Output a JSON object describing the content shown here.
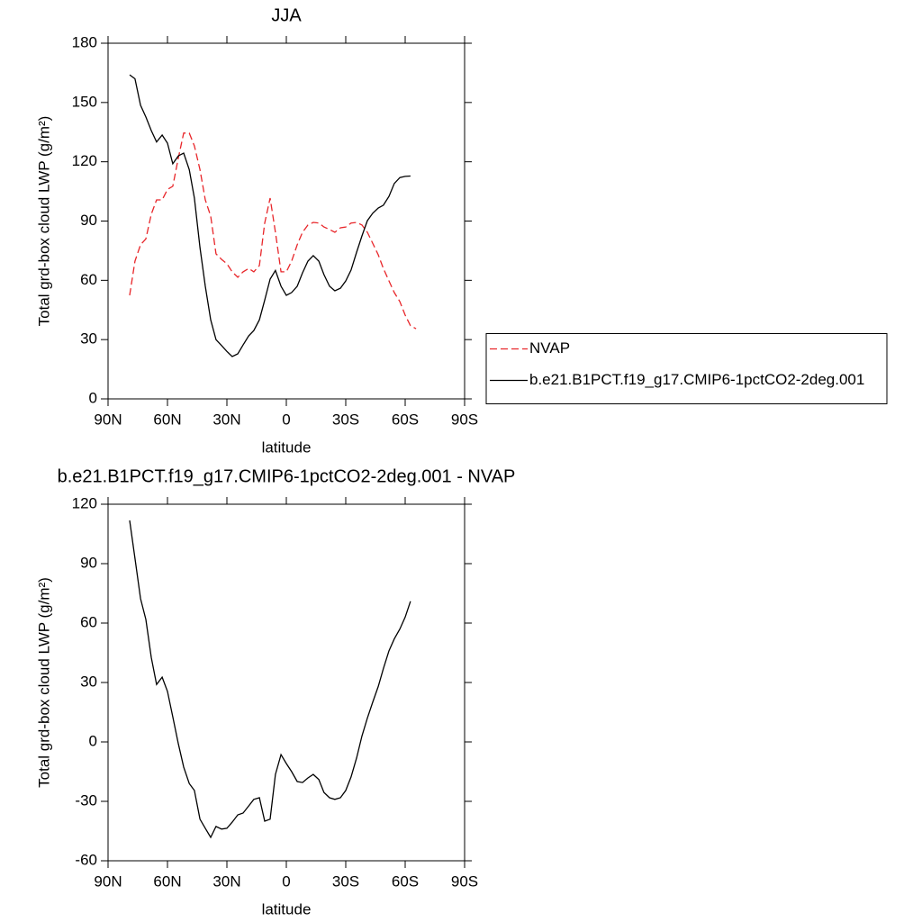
{
  "chart_data": [
    {
      "type": "line",
      "title": "JJA",
      "xlabel": "latitude",
      "ylabel": "Total grd-box cloud LWP (g/m²)",
      "x": [
        79.1,
        76.4,
        73.6,
        70.9,
        68.2,
        65.5,
        62.7,
        60,
        57.3,
        54.5,
        51.8,
        49,
        46.4,
        43.6,
        40.9,
        38.2,
        35.5,
        32.7,
        30,
        27.3,
        24.5,
        21.8,
        19,
        16.4,
        13.6,
        10.9,
        8.2,
        5.5,
        2.7,
        0,
        -2.7,
        -5.5,
        -8.2,
        -10.9,
        -13.6,
        -16.4,
        -19,
        -21.8,
        -24.5,
        -27.3,
        -30,
        -32.7,
        -35.5,
        -38.2,
        -40.9,
        -43.6,
        -46.4,
        -49,
        -51.8,
        -54.5,
        -57.3,
        -60,
        -62.7,
        -65.5
      ],
      "series": [
        {
          "name": "NVAP",
          "color": "#e8262a",
          "dash": true,
          "values": [
            52.4,
            69.7,
            78,
            81,
            93.4,
            100.7,
            100.7,
            106,
            107.6,
            122,
            134.5,
            134.5,
            128,
            116,
            100.7,
            92.5,
            73.4,
            70.6,
            68.4,
            64.3,
            61.5,
            64.3,
            66,
            64.3,
            67.5,
            89,
            101.6,
            84.3,
            64.3,
            64.3,
            69.7,
            78,
            84.3,
            88,
            89.3,
            89,
            87,
            85.7,
            84.3,
            86.6,
            87,
            89,
            89.3,
            88,
            84.3,
            78.8,
            72.9,
            66,
            59.7,
            53.8,
            49.2,
            42.4,
            37,
            35.5
          ]
        },
        {
          "name": "b.e21.B1PCT.f19_g17.CMIP6-1pctCO2-2deg.001",
          "color": "#000000",
          "dash": false,
          "values": [
            164,
            162,
            148.6,
            142.7,
            135.8,
            130,
            133.5,
            129.4,
            119,
            123,
            124.4,
            116,
            101.6,
            76.6,
            57,
            40,
            30,
            27,
            24,
            21.4,
            22.8,
            27.3,
            31.9,
            34.6,
            40,
            50,
            60.6,
            65,
            57,
            52.4,
            53.8,
            57,
            63.8,
            69.7,
            72.5,
            69.7,
            62.9,
            57,
            54.7,
            56,
            59.7,
            65.2,
            74.3,
            82.5,
            90.2,
            93.9,
            96.6,
            98,
            102.5,
            109,
            112,
            112.6,
            112.8,
            null
          ]
        }
      ],
      "xlim": [
        90,
        -90
      ],
      "ylim": [
        0,
        180
      ],
      "xticks": [
        {
          "value": 90,
          "label": "90N"
        },
        {
          "value": 60,
          "label": "60N"
        },
        {
          "value": 30,
          "label": "30N"
        },
        0,
        {
          "value": -30,
          "label": "30S"
        },
        {
          "value": -60,
          "label": "60S"
        },
        {
          "value": -90,
          "label": "90S"
        }
      ],
      "yticks": [
        0,
        30,
        60,
        90,
        120,
        150,
        180
      ],
      "legend": "right"
    },
    {
      "type": "line",
      "title": "b.e21.B1PCT.f19_g17.CMIP6-1pctCO2-2deg.001 - NVAP",
      "xlabel": "latitude",
      "ylabel": "Total grd-box cloud LWP (g/m²)",
      "x": [
        79.1,
        76.4,
        73.6,
        70.9,
        68.2,
        65.5,
        62.7,
        60,
        57.3,
        54.5,
        51.8,
        49,
        46.4,
        43.6,
        40.9,
        38.2,
        35.5,
        32.7,
        30,
        27.3,
        24.5,
        21.8,
        19,
        16.4,
        13.6,
        10.9,
        8.2,
        5.5,
        2.7,
        0,
        -2.7,
        -5.5,
        -8.2,
        -10.9,
        -13.6,
        -16.4,
        -19,
        -21.8,
        -24.5,
        -27.3,
        -30,
        -32.7,
        -35.5,
        -38.2,
        -40.9,
        -43.6,
        -46.4,
        -49,
        -51.8,
        -54.5,
        -57.3,
        -60,
        -62.7
      ],
      "series": [
        {
          "color": "#000000",
          "dash": false,
          "values": [
            111.8,
            92.7,
            72.3,
            61.8,
            42.7,
            29,
            32.7,
            25.5,
            12.7,
            -1,
            -12.7,
            -21,
            -24.5,
            -39,
            -43.6,
            -48.2,
            -42.7,
            -44,
            -43.6,
            -40.5,
            -36.8,
            -35.9,
            -32.3,
            -29,
            -28.2,
            -40,
            -39,
            -16.4,
            -6.4,
            -10.9,
            -15,
            -20,
            -20.5,
            -18.2,
            -16.4,
            -19,
            -25.5,
            -28.2,
            -29,
            -28.2,
            -24.5,
            -17.7,
            -8,
            3,
            12,
            20,
            28,
            37,
            46,
            52,
            57,
            63,
            71
          ]
        }
      ],
      "xlim": [
        90,
        -90
      ],
      "ylim": [
        -60,
        120
      ],
      "xticks": [
        {
          "value": 90,
          "label": "90N"
        },
        {
          "value": 60,
          "label": "60N"
        },
        {
          "value": 30,
          "label": "30N"
        },
        0,
        {
          "value": -30,
          "label": "30S"
        },
        {
          "value": -60,
          "label": "60S"
        },
        {
          "value": -90,
          "label": "90S"
        }
      ],
      "yticks": [
        -60,
        -30,
        0,
        30,
        60,
        90,
        120
      ]
    }
  ]
}
